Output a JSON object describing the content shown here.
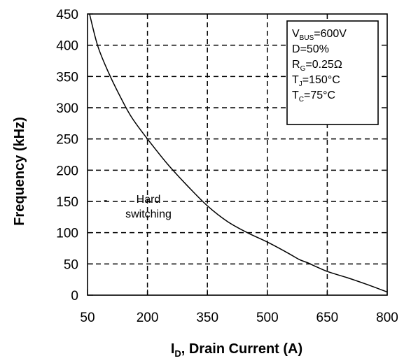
{
  "chart_data": {
    "type": "line",
    "title": "",
    "xlabel_main": "I",
    "xlabel_sub": "D",
    "xlabel_rest": ", Drain Current (A)",
    "ylabel": "Frequency (kHz)",
    "xlim": [
      50,
      800
    ],
    "ylim": [
      0,
      450
    ],
    "x_ticks": [
      "50",
      "200",
      "350",
      "500",
      "650",
      "800"
    ],
    "y_ticks": [
      "0",
      "50",
      "100",
      "150",
      "200",
      "250",
      "300",
      "350",
      "400",
      "450"
    ],
    "grid": true,
    "grid_style": "dashed",
    "series": [
      {
        "x": [
          55,
          75,
          100,
          130,
          160,
          200,
          250,
          300,
          350,
          400,
          450,
          500,
          550,
          580,
          600,
          650,
          700,
          750,
          800
        ],
        "y": [
          450,
          400,
          360,
          320,
          285,
          250,
          210,
          175,
          143,
          118,
          100,
          85,
          68,
          57,
          52,
          38,
          28,
          17,
          5
        ]
      }
    ],
    "annotation": {
      "line1": "Hard",
      "line2": "switching",
      "dot": "-"
    },
    "conditions": [
      {
        "main": "V",
        "sub": "BUS",
        "rest": "=600V"
      },
      {
        "main": "D",
        "sub": "",
        "rest": "=50%"
      },
      {
        "main": "R",
        "sub": "G",
        "rest": "=0.25Ω"
      },
      {
        "main": "T",
        "sub": "J",
        "rest": "=150°C"
      },
      {
        "main": "T",
        "sub": "C",
        "rest": "=75°C"
      }
    ],
    "colors": {
      "line": "#000000",
      "grid": "#000000",
      "background": "#ffffff"
    }
  }
}
